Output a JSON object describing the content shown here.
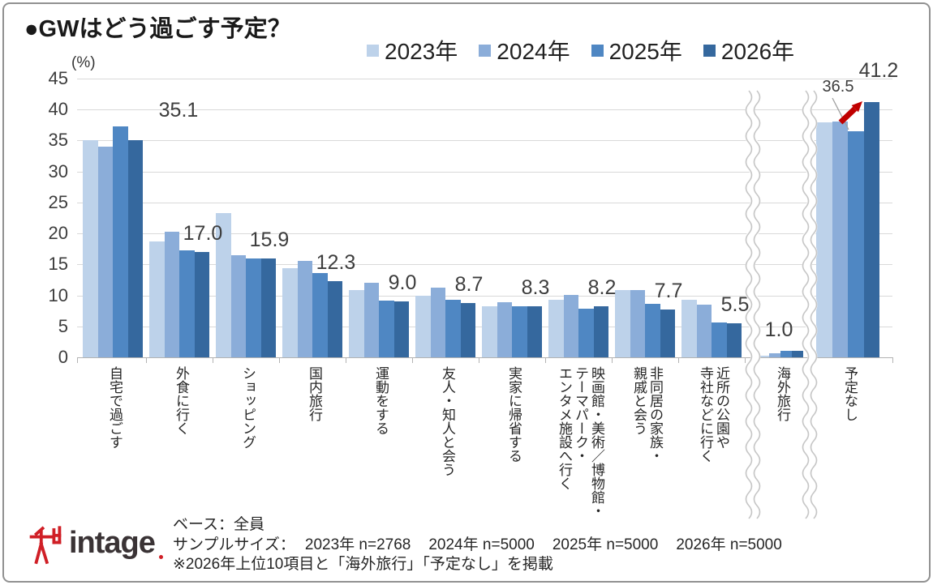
{
  "title": "●GWはどう過ごす予定？",
  "y_axis": {
    "unit_label": "(%)",
    "ticks": [
      "45",
      "40",
      "35",
      "30",
      "25",
      "20",
      "15",
      "10",
      "5",
      "0"
    ]
  },
  "chart_data": {
    "type": "bar",
    "title": "GWはどう過ごす予定？",
    "ylabel": "(%)",
    "ylim": [
      0,
      45
    ],
    "y_tick_step": 5,
    "grid": true,
    "legend_position": "top-right",
    "categories": [
      "自宅で過ごす",
      "外食に行く",
      "ショッピング",
      "国内旅行",
      "運動をする",
      "友人・知人と会う",
      "実家に帰省する",
      "映画館・美術／博物館・\nテーマパーク・\nエンタメ施設へ行く",
      "非同居の家族・\n親戚と会う",
      "近所の公園や\n寺社などに行く",
      "海外旅行",
      "予定なし"
    ],
    "series": [
      {
        "name": "2023年",
        "color": "#bdd2ea",
        "values": [
          35.0,
          18.7,
          23.3,
          14.4,
          10.9,
          9.9,
          8.2,
          9.3,
          10.9,
          9.3,
          0.3,
          37.9
        ]
      },
      {
        "name": "2024年",
        "color": "#8badd9",
        "values": [
          34.0,
          20.3,
          16.5,
          15.6,
          12.0,
          11.2,
          8.9,
          10.1,
          10.9,
          8.5,
          0.6,
          38.1
        ]
      },
      {
        "name": "2025年",
        "color": "#4f87c3",
        "values": [
          37.3,
          17.3,
          16.0,
          13.6,
          9.2,
          9.3,
          8.3,
          7.9,
          8.6,
          5.6,
          1.1,
          36.5
        ]
      },
      {
        "name": "2026年",
        "color": "#35689e",
        "values": [
          35.1,
          17.0,
          15.9,
          12.3,
          9.0,
          8.7,
          8.3,
          8.2,
          7.7,
          5.5,
          1.0,
          41.2
        ]
      }
    ],
    "value_labels": {
      "series": "2026年",
      "values": [
        "35.1",
        "17.0",
        "15.9",
        "12.3",
        "9.0",
        "8.7",
        "8.3",
        "8.2",
        "7.7",
        "5.5",
        "1.0",
        "41.2"
      ]
    },
    "extra_label": {
      "series": "2025年",
      "category": "予定なし",
      "text": "36.5"
    },
    "annotations": {
      "increase_arrow": {
        "category": "予定なし",
        "from_series": "2025年",
        "to_series": "2026年",
        "color": "#c00000"
      }
    },
    "axis_breaks": [
      "近所の公園や寺社などに行く|海外旅行",
      "海外旅行|予定なし"
    ]
  },
  "footer": {
    "base": "ベース：全員",
    "sample_size_label": "サンプルサイズ：",
    "sample_sizes": [
      "2023年 n=2768",
      "2024年 n=5000",
      "2025年 n=5000",
      "2026年 n=5000"
    ],
    "note": "※2026年上位10項目と「海外旅行」「予定なし」を掲載",
    "logo_text": "intage"
  }
}
